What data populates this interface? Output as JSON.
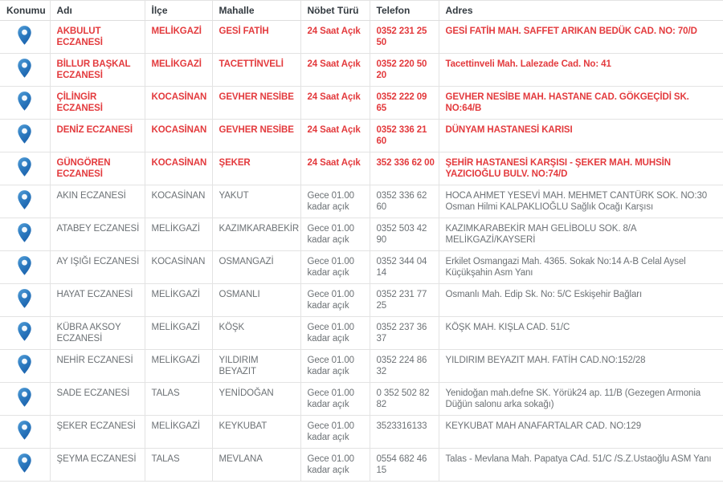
{
  "colors": {
    "duty_24h_text": "#e33a3d",
    "night_text": "#6c7175",
    "header_text": "#333a40",
    "border": "#e3e3e3",
    "pin_blue_top": "#58a0d7",
    "pin_blue_bottom": "#1c63ad",
    "pin_dot": "#f2f7fc"
  },
  "icons": {
    "location_pin": "map-pin-icon"
  },
  "table": {
    "columns": [
      {
        "key": "location",
        "label": "Konumu"
      },
      {
        "key": "name",
        "label": "Adı"
      },
      {
        "key": "district",
        "label": "İlçe"
      },
      {
        "key": "neighborhood",
        "label": "Mahalle"
      },
      {
        "key": "duty_type",
        "label": "Nöbet Türü"
      },
      {
        "key": "phone",
        "label": "Telefon"
      },
      {
        "key": "address",
        "label": "Adres"
      }
    ],
    "rows": [
      {
        "name": "AKBULUT ECZANESİ",
        "district": "MELİKGAZİ",
        "neighborhood": "GESİ FATİH",
        "duty_type": "24 Saat Açık",
        "phone": "0352 231 25 50",
        "address": "GESİ FATİH MAH. SAFFET ARIKAN BEDÜK CAD. NO: 70/D",
        "is_24h": true
      },
      {
        "name": "BİLLUR BAŞKAL ECZANESİ",
        "district": "MELİKGAZİ",
        "neighborhood": "TACETTİNVELİ",
        "duty_type": "24 Saat Açık",
        "phone": "0352 220 50 20",
        "address": "Tacettinveli Mah. Lalezade Cad. No: 41",
        "is_24h": true
      },
      {
        "name": "ÇİLİNGİR ECZANESİ",
        "district": "KOCASİNAN",
        "neighborhood": "GEVHER NESİBE",
        "duty_type": "24 Saat Açık",
        "phone": "0352 222 09 65",
        "address": "GEVHER NESİBE MAH. HASTANE CAD. GÖKGEÇİDİ SK. NO:64/B",
        "is_24h": true
      },
      {
        "name": "DENİZ ECZANESİ",
        "district": "KOCASİNAN",
        "neighborhood": "GEVHER NESİBE",
        "duty_type": "24 Saat Açık",
        "phone": "0352 336 21 60",
        "address": "DÜNYAM HASTANESİ KARISI",
        "is_24h": true
      },
      {
        "name": "GÜNGÖREN ECZANESİ",
        "district": "KOCASİNAN",
        "neighborhood": "ŞEKER",
        "duty_type": "24 Saat Açık",
        "phone": "352 336 62 00",
        "address": "ŞEHİR HASTANESİ KARŞISI - ŞEKER MAH. MUHSİN YAZICIOĞLU BULV. NO:74/D",
        "is_24h": true
      },
      {
        "name": "AKIN ECZANESİ",
        "district": "KOCASİNAN",
        "neighborhood": "YAKUT",
        "duty_type": "Gece 01.00 kadar açık",
        "phone": "0352 336 62 60",
        "address": "HOCA AHMET YESEVİ MAH. MEHMET CANTÜRK SOK. NO:30 Osman Hilmi KALPAKLIOĞLU Sağlık Ocağı Karşısı",
        "is_24h": false
      },
      {
        "name": "ATABEY ECZANESİ",
        "district": "MELİKGAZİ",
        "neighborhood": "KAZIMKARABEKİR",
        "duty_type": "Gece 01.00 kadar açık",
        "phone": "0352 503 42 90",
        "address": "KAZIMKARABEKİR MAH GELİBOLU SOK. 8/A MELİKGAZİ/KAYSERİ",
        "is_24h": false
      },
      {
        "name": "AY IŞIĞI ECZANESİ",
        "district": "KOCASİNAN",
        "neighborhood": "OSMANGAZİ",
        "duty_type": "Gece 01.00 kadar açık",
        "phone": "0352 344 04 14",
        "address": "Erkilet Osmangazi Mah. 4365. Sokak No:14 A-B Celal Aysel Küçükşahin Asm Yanı",
        "is_24h": false
      },
      {
        "name": "HAYAT ECZANESİ",
        "district": "MELİKGAZİ",
        "neighborhood": "OSMANLI",
        "duty_type": "Gece 01.00 kadar açık",
        "phone": "0352 231 77 25",
        "address": "Osmanlı Mah. Edip Sk. No: 5/C Eskişehir Bağları",
        "is_24h": false
      },
      {
        "name": "KÜBRA AKSOY ECZANESİ",
        "district": "MELİKGAZİ",
        "neighborhood": "KÖŞK",
        "duty_type": "Gece 01.00 kadar açık",
        "phone": "0352 237 36 37",
        "address": "KÖŞK MAH. KIŞLA CAD. 51/C",
        "is_24h": false
      },
      {
        "name": "NEHİR ECZANESİ",
        "district": "MELİKGAZİ",
        "neighborhood": "YILDIRIM BEYAZIT",
        "duty_type": "Gece 01.00 kadar açık",
        "phone": "0352 224 86 32",
        "address": "YILDIRIM BEYAZIT MAH. FATİH CAD.NO:152/28",
        "is_24h": false
      },
      {
        "name": "SADE ECZANESİ",
        "district": "TALAS",
        "neighborhood": "YENİDOĞAN",
        "duty_type": "Gece 01.00 kadar açık",
        "phone": "0 352 502 82 82",
        "address": "Yenidoğan mah.defne SK. Yörük24 ap. 11/B (Gezegen Armonia Düğün salonu arka sokağı)",
        "is_24h": false
      },
      {
        "name": "ŞEKER ECZANESİ",
        "district": "MELİKGAZİ",
        "neighborhood": "KEYKUBAT",
        "duty_type": "Gece 01.00 kadar açık",
        "phone": "3523316133",
        "address": "KEYKUBAT MAH ANAFARTALAR CAD. NO:129",
        "is_24h": false
      },
      {
        "name": "ŞEYMA ECZANESİ",
        "district": "TALAS",
        "neighborhood": "MEVLANA",
        "duty_type": "Gece 01.00 kadar açık",
        "phone": "0554 682 46 15",
        "address": "Talas - Mevlana Mah. Papatya CAd. 51/C /S.Z.Ustaoğlu ASM Yanı",
        "is_24h": false
      }
    ]
  }
}
